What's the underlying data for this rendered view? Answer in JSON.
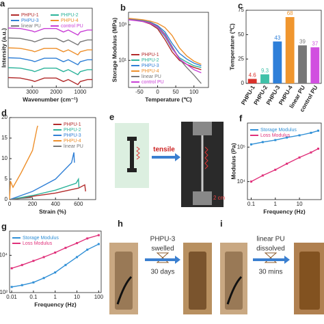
{
  "chart_data": [
    {
      "type": "line",
      "panel": "a",
      "xlabel": "Wavenumber (cm⁻¹)",
      "ylabel": "Intensity (a.u.)",
      "legend": "upper left",
      "x": [
        4000,
        3500,
        3000,
        2900,
        2500,
        2000,
        1700,
        1500,
        1100,
        1000,
        700,
        500
      ],
      "xlim": [
        4000,
        500
      ],
      "xticks": [
        3000,
        2000,
        1000
      ],
      "ylim": [
        0,
        8
      ],
      "series": [
        {
          "name": "PHPU-1",
          "color": "#b22a2a",
          "values": [
            1.0,
            0.95,
            0.7,
            0.6,
            0.95,
            0.95,
            0.6,
            0.8,
            0.3,
            0.6,
            0.8,
            0.8
          ]
        },
        {
          "name": "PHPU-2",
          "color": "#2bb39a",
          "values": [
            2.0,
            1.95,
            1.7,
            1.6,
            1.95,
            1.95,
            1.6,
            1.8,
            1.3,
            1.6,
            1.8,
            1.8
          ]
        },
        {
          "name": "PHPU-3",
          "color": "#2f7fd6",
          "values": [
            3.0,
            2.95,
            2.7,
            2.6,
            2.95,
            2.95,
            2.6,
            2.8,
            2.3,
            2.6,
            2.8,
            2.8
          ]
        },
        {
          "name": "PHPU-4",
          "color": "#ee8f2a",
          "values": [
            4.0,
            3.95,
            3.7,
            3.6,
            3.95,
            3.95,
            3.6,
            3.8,
            3.3,
            3.6,
            3.8,
            3.8
          ]
        },
        {
          "name": "linear PU",
          "color": "#777777",
          "values": [
            5.0,
            4.95,
            4.7,
            4.6,
            4.95,
            4.95,
            4.6,
            4.8,
            4.3,
            4.6,
            4.8,
            4.8
          ]
        },
        {
          "name": "control PU",
          "color": "#c93fd6",
          "values": [
            6.0,
            5.95,
            5.7,
            5.6,
            5.95,
            5.95,
            5.6,
            5.8,
            5.3,
            5.6,
            5.8,
            5.8
          ]
        }
      ]
    },
    {
      "type": "line",
      "panel": "b",
      "xlabel": "Temperature (℃)",
      "ylabel": "Storage Modulus (MPa)",
      "legend": "lower left",
      "log_y": true,
      "x": [
        -80,
        -60,
        -40,
        -20,
        0,
        20,
        40,
        60,
        80,
        100,
        120
      ],
      "xlim": [
        -80,
        140
      ],
      "xticks": [
        -50,
        0,
        50,
        100
      ],
      "ylim": [
        0.3,
        5000
      ],
      "yticks": [
        {
          "value": 10,
          "label": "10¹"
        },
        {
          "value": 1000,
          "label": "10³"
        }
      ],
      "series": [
        {
          "name": "PHPU-1",
          "color": "#b22a2a",
          "values": [
            2000,
            1800,
            1500,
            1100,
            600,
            150,
            30,
            10,
            6,
            4,
            3
          ]
        },
        {
          "name": "PHPU-2",
          "color": "#2bb39a",
          "values": [
            2100,
            1900,
            1600,
            1200,
            700,
            220,
            45,
            14,
            8,
            5,
            4
          ]
        },
        {
          "name": "PHPU-3",
          "color": "#2f7fd6",
          "values": [
            2200,
            2000,
            1700,
            1400,
            900,
            400,
            90,
            25,
            12,
            7,
            5
          ]
        },
        {
          "name": "PHPU-4",
          "color": "#ee8f2a",
          "values": [
            2300,
            2100,
            1900,
            1600,
            1200,
            700,
            250,
            50,
            18,
            9,
            6
          ]
        },
        {
          "name": "linear PU",
          "color": "#777777",
          "values": [
            2000,
            1800,
            1600,
            1300,
            800,
            300,
            60,
            12,
            4,
            1.5,
            0.5
          ]
        },
        {
          "name": "control PU",
          "color": "#c93fd6",
          "values": [
            1900,
            1700,
            1500,
            1200,
            750,
            250,
            50,
            12,
            6,
            3,
            2
          ]
        }
      ]
    },
    {
      "type": "bar",
      "panel": "c",
      "ylabel": "Temperature (℃)",
      "categories": [
        "PHPU-1",
        "PHPU-2",
        "PHPU-3",
        "PHPU-4",
        "linear PU",
        "control PU"
      ],
      "values": [
        4.6,
        9.3,
        43,
        68,
        39,
        37
      ],
      "colors": [
        "#d9312b",
        "#3fc1a8",
        "#2e7fd9",
        "#f0962e",
        "#777777",
        "#d14fe0"
      ],
      "ylim": [
        0,
        75
      ],
      "yticks": [
        0,
        25,
        50,
        75
      ]
    },
    {
      "type": "line",
      "panel": "d",
      "xlabel": "Strain (%)",
      "legend": "upper right",
      "xlim": [
        0,
        750
      ],
      "xticks": [
        0,
        200,
        400,
        600
      ],
      "ylim": [
        0,
        20
      ],
      "yticks": [
        0,
        5,
        10,
        15,
        20
      ],
      "series": [
        {
          "name": "PHPU-1",
          "color": "#b22a2a",
          "x": [
            0,
            200,
            400,
            600,
            655,
            662
          ],
          "values": [
            0,
            0.8,
            1.6,
            2.8,
            3.6,
            2.0
          ]
        },
        {
          "name": "PHPU-2",
          "color": "#2bb39a",
          "x": [
            0,
            200,
            400,
            580,
            600,
            604
          ],
          "values": [
            0,
            1.0,
            2.3,
            4.0,
            5.0,
            3.0
          ]
        },
        {
          "name": "PHPU-3",
          "color": "#2f7fd6",
          "x": [
            0,
            200,
            400,
            540,
            560,
            565
          ],
          "values": [
            0,
            2.0,
            5.0,
            9.0,
            11.5,
            9.0
          ]
        },
        {
          "name": "PHPU-4",
          "color": "#ee8f2a",
          "x": [
            0,
            8,
            30,
            100,
            200,
            240,
            245
          ],
          "values": [
            0,
            4.5,
            3.0,
            6.5,
            12.0,
            17.5,
            18.0
          ]
        },
        {
          "name": "linear PU",
          "color": "#777777",
          "x": [
            0,
            100,
            200
          ],
          "values": [
            0,
            0.3,
            0.5
          ]
        }
      ]
    },
    {
      "type": "line",
      "panel": "f",
      "xlabel": "Frequency (Hz)",
      "ylabel": "Modulus (Pa)",
      "legend": "upper left",
      "log_x": true,
      "log_y": true,
      "markers": true,
      "x": [
        0.1,
        0.3,
        1,
        3,
        10,
        30,
        60
      ],
      "xlim": [
        0.07,
        80
      ],
      "xticks": [
        0.1,
        1,
        10
      ],
      "ylim": [
        3000,
        500000
      ],
      "yticks": [
        {
          "value": 10000,
          "label": "10⁴"
        },
        {
          "value": 100000,
          "label": "10⁵"
        }
      ],
      "series": [
        {
          "name": "Storage Modulus",
          "color": "#2f8fd6",
          "values": [
            120000,
            140000,
            160000,
            190000,
            220000,
            260000,
            300000
          ]
        },
        {
          "name": "Loss Modulus",
          "color": "#e0307a",
          "values": [
            10000,
            15000,
            22000,
            33000,
            50000,
            70000,
            90000
          ]
        }
      ]
    },
    {
      "type": "line",
      "panel": "g",
      "xlabel": "Frequency (Hz)",
      "legend": "upper left",
      "log_x": true,
      "log_y": true,
      "markers": true,
      "x": [
        0.01,
        0.03,
        0.1,
        0.3,
        1,
        3,
        10,
        30,
        100
      ],
      "xlim": [
        0.008,
        130
      ],
      "xticks": [
        0.01,
        0.1,
        1,
        10,
        100
      ],
      "ylim": [
        100,
        200000
      ],
      "yticks": [
        {
          "value": 100,
          "label": "10²"
        },
        {
          "value": 10000,
          "label": "10⁴"
        }
      ],
      "series": [
        {
          "name": "Storage Modulus",
          "color": "#2f8fd6",
          "values": [
            200,
            250,
            350,
            600,
            1200,
            3000,
            8000,
            20000,
            40000
          ]
        },
        {
          "name": "Loss Modulus",
          "color": "#e0307a",
          "values": [
            2000,
            3000,
            5000,
            8000,
            14000,
            25000,
            45000,
            80000,
            120000
          ]
        }
      ]
    }
  ],
  "diagrams": {
    "e": {
      "panel": "e",
      "arrow_label": "tensile",
      "scale": "2 cm"
    },
    "h": {
      "panel": "h",
      "sample": "PHPU-3",
      "action": "swelled",
      "time": "30 days"
    },
    "i": {
      "panel": "i",
      "sample": "linear PU",
      "action": "dissolved",
      "time": "30 mins"
    }
  }
}
